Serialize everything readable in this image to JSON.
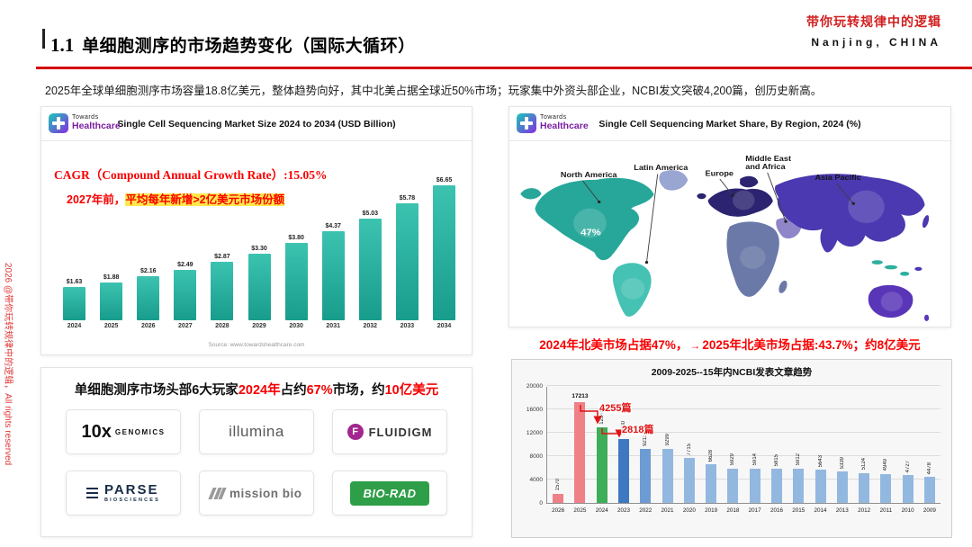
{
  "header": {
    "title_num": "1.1",
    "title_text": "单细胞测序的市场趋势变化（国际大循环）",
    "slogan": "带你玩转规律中的逻辑",
    "location": "Nanjing, CHINA"
  },
  "subtitle": "2025年全球单细胞测序市场容量18.8亿美元，整体趋势向好，其中北美占据全球近50%市场；玩家集中外资头部企业，NCBI发文突破4,200篇，创历史新高。",
  "watermark": "2026 @带你玩转规律中的逻辑，All rights reserved",
  "brand": {
    "towards": "Towards",
    "healthcare": "Healthcare"
  },
  "market_size": {
    "title": "Single Cell Sequencing Market Size 2024 to 2034 (USD Billion)",
    "cagr_note": "CAGR（Compound Annual Growth Rate）:15.05%",
    "growth_prefix": "2027年前，",
    "growth_highlight": "平均每年新增>2亿美元市场份额",
    "source": "Source: www.towardshealthcare.com"
  },
  "market_share": {
    "title": "Single Cell Sequencing Market Share, By Region, 2024 (%)",
    "labels": {
      "north_america": "North America",
      "latin_america": "Latin America",
      "europe": "Europe",
      "mea_1": "Middle East",
      "mea_2": "and Africa",
      "asia_pacific": "Asia Pacific"
    },
    "na_share": "47%",
    "note_left": "2024年北美市场占据47%，",
    "arrow": "→",
    "note_right": "2025年北美市场占据:43.7%；约8亿美元"
  },
  "players": {
    "title_segments": [
      {
        "text": "单细胞测序市场头部6大玩家",
        "red": false
      },
      {
        "text": "2024年",
        "red": true
      },
      {
        "text": "占约",
        "red": false
      },
      {
        "text": "67%",
        "red": true
      },
      {
        "text": "市场，约",
        "red": false
      },
      {
        "text": "10亿美元",
        "red": true
      }
    ],
    "tenx": {
      "num": "10x",
      "word": "GENOMICS"
    },
    "illumina": "illumina",
    "fluidigm": {
      "letter": "F",
      "word": "FLUIDIGM"
    },
    "parse": {
      "word": "PARSE",
      "sub": "BIOSCIENCES"
    },
    "missionbio": "mission bio",
    "biorad": "BIO-RAD"
  },
  "ncbi": {
    "title": "2009-2025--15年内NCBI发表文章趋势",
    "annotation_1": "4255篇",
    "annotation_2": "2818篇"
  },
  "chart_data": [
    {
      "type": "bar",
      "title": "Single Cell Sequencing Market Size 2024 to 2034 (USD Billion)",
      "categories": [
        "2024",
        "2025",
        "2026",
        "2027",
        "2028",
        "2029",
        "2030",
        "2031",
        "2032",
        "2033",
        "2034"
      ],
      "values": [
        1.63,
        1.88,
        2.16,
        2.49,
        2.87,
        3.3,
        3.8,
        4.37,
        5.03,
        5.78,
        6.65
      ],
      "labels": [
        "$1.63",
        "$1.88",
        "$2.16",
        "$2.49",
        "$2.87",
        "$3.30",
        "$3.80",
        "$4.37",
        "$5.03",
        "$5.78",
        "$6.65"
      ],
      "ylim": [
        0,
        7
      ],
      "bar_color": "#2fb3a3",
      "legend_position": "none",
      "grid": false
    },
    {
      "type": "bar",
      "title": "2009-2025--15年内NCBI发表文章趋势",
      "categories": [
        "2026",
        "2025",
        "2024",
        "2023",
        "2022",
        "2021",
        "2020",
        "2019",
        "2018",
        "2017",
        "2016",
        "2015",
        "2014",
        "2013",
        "2012",
        "2011",
        "2010",
        "2009"
      ],
      "values": [
        1570,
        17213,
        12948,
        10930,
        9211,
        9299,
        7715,
        6628,
        5929,
        5914,
        5815,
        5912,
        5643,
        5339,
        5124,
        4949,
        4727,
        4478
      ],
      "ylim": [
        0,
        20000
      ],
      "yticks": [
        0,
        4000,
        8000,
        12000,
        16000,
        20000
      ],
      "bar_colors": [
        "#ef8087",
        "#ef8087",
        "#3fae5a",
        "#3e78c0",
        "#6d9bd4",
        "#93b8e0",
        "#93b8e0",
        "#93b8e0",
        "#93b8e0",
        "#93b8e0",
        "#93b8e0",
        "#93b8e0",
        "#93b8e0",
        "#93b8e0",
        "#93b8e0",
        "#93b8e0",
        "#93b8e0",
        "#93b8e0"
      ],
      "annotations": [
        {
          "text": "4255篇",
          "target": "2024"
        },
        {
          "text": "2818篇",
          "target": "2023"
        }
      ],
      "grid": true
    }
  ]
}
